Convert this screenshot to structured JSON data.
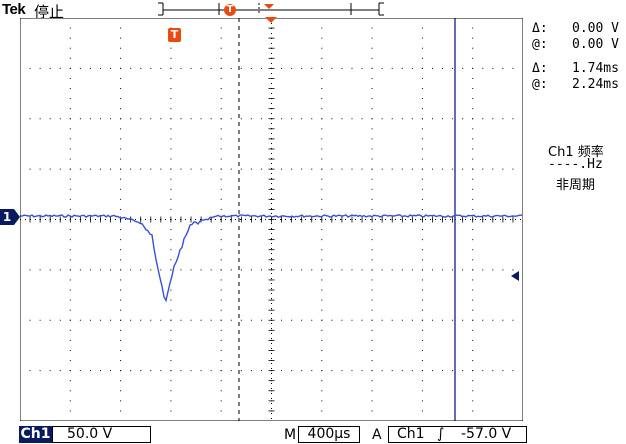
{
  "header": {
    "brand": "Tek",
    "run_state": "停止",
    "trigger_marker": "T",
    "colors": {
      "trace": "#3a4fd8",
      "cursor": "#2c3e9e",
      "badge": "#0a1a5e",
      "trigger": "#e84a10"
    }
  },
  "readouts": {
    "voltage_delta_symbol": "Δ:",
    "voltage_delta": "0.00 V",
    "voltage_at_symbol": "@:",
    "voltage_at": "0.00 V",
    "time_delta_symbol": "Δ:",
    "time_delta": "1.74ms",
    "time_at_symbol": "@:",
    "time_at": "2.24ms",
    "measure_title": "Ch1 频率",
    "measure_value": "----.Hz",
    "measure_status": "非周期"
  },
  "channel_marker": "1",
  "trigger_badge": "T",
  "footer": {
    "channel": "Ch1",
    "volts_per_div": "50.0 V",
    "mode": "M",
    "time_per_div": "400µs",
    "trigger_mode": "A",
    "trigger_channel": "Ch1",
    "trigger_slope": "∫",
    "trigger_level": "-57.0 V"
  }
}
